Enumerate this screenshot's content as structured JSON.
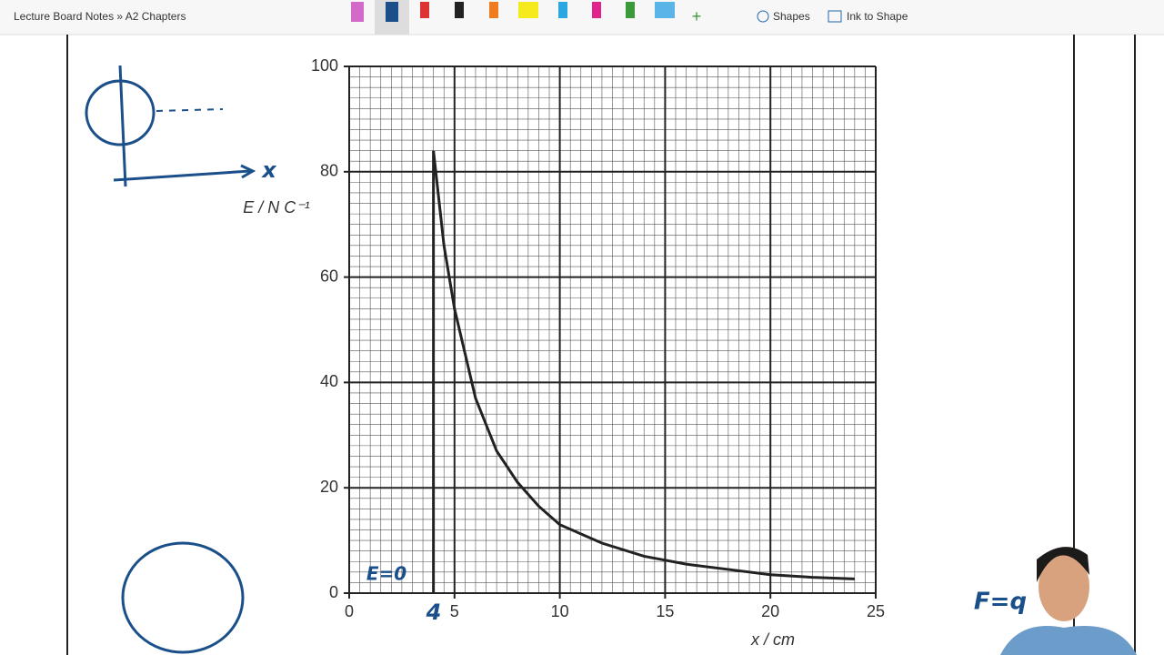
{
  "toolbar": {
    "breadcrumb": "Lecture Board Notes » A2 Chapters",
    "shapes": "Shapes",
    "ink_to_shape": "Ink to Shape"
  },
  "chart_data": {
    "type": "line",
    "x_label": "x / cm",
    "y_label": "E / N C⁻¹",
    "x": [
      4,
      4.5,
      5,
      6,
      7,
      8,
      9,
      10,
      12,
      14,
      16,
      18,
      20,
      22,
      24
    ],
    "values": [
      84,
      66,
      54,
      37,
      27,
      21,
      16.5,
      13,
      9.5,
      7,
      5.5,
      4.5,
      3.5,
      3,
      2.7
    ],
    "color": "#222222",
    "xlim": [
      0,
      25
    ],
    "xticks": [
      0,
      5,
      10,
      15,
      20,
      25
    ],
    "ylim": [
      0,
      100
    ],
    "yticks": [
      0,
      20,
      40,
      60,
      80,
      100
    ],
    "grid": true,
    "annotations": [
      "E=0",
      "4",
      "x",
      "F=q"
    ]
  }
}
